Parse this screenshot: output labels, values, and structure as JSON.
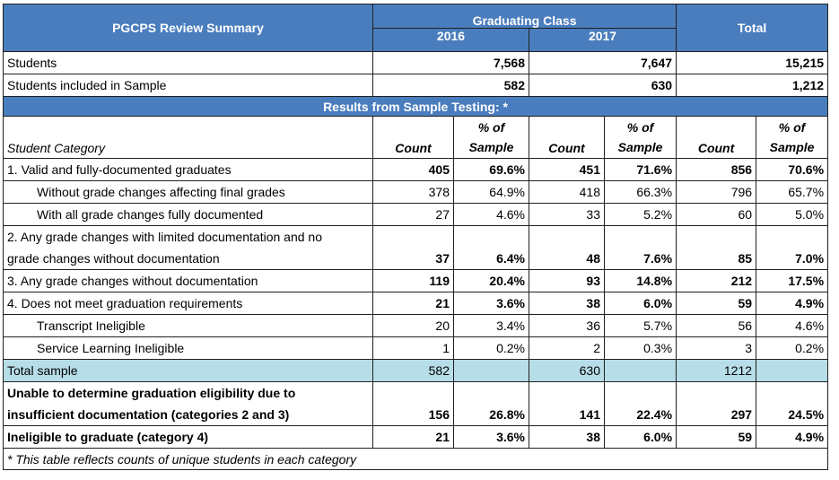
{
  "header": {
    "title": "PGCPS Review Summary",
    "graduating_class": "Graduating Class",
    "year_2016": "2016",
    "year_2017": "2017",
    "total": "Total"
  },
  "summary_rows": [
    {
      "label": "Students",
      "v2016": "7,568",
      "v2017": "7,647",
      "total": "15,215"
    },
    {
      "label": "Students included in Sample",
      "v2016": "582",
      "v2017": "630",
      "total": "1,212"
    }
  ],
  "results_banner": "Results from Sample Testing: *",
  "subheader": {
    "category": "Student Category",
    "count": "Count",
    "pct_line1": "% of",
    "pct_line2": "Sample"
  },
  "rows": [
    {
      "label": "1.  Valid and fully-documented graduates",
      "c16": "405",
      "p16": "69.6%",
      "c17": "451",
      "p17": "71.6%",
      "ct": "856",
      "pt": "70.6%"
    },
    {
      "label": "Without grade changes affecting final grades",
      "c16": "378",
      "p16": "64.9%",
      "c17": "418",
      "p17": "66.3%",
      "ct": "796",
      "pt": "65.7%"
    },
    {
      "label": "With all grade changes fully documented",
      "c16": "27",
      "p16": "4.6%",
      "c17": "33",
      "p17": "5.2%",
      "ct": "60",
      "pt": "5.0%"
    },
    {
      "label_line1": "2.  Any grade changes with limited documentation and no",
      "label_line2": "grade changes without documentation",
      "c16": "37",
      "p16": "6.4%",
      "c17": "48",
      "p17": "7.6%",
      "ct": "85",
      "pt": "7.0%"
    },
    {
      "label": "3.  Any grade changes without documentation",
      "c16": "119",
      "p16": "20.4%",
      "c17": "93",
      "p17": "14.8%",
      "ct": "212",
      "pt": "17.5%"
    },
    {
      "label": "4.  Does not meet graduation requirements",
      "c16": "21",
      "p16": "3.6%",
      "c17": "38",
      "p17": "6.0%",
      "ct": "59",
      "pt": "4.9%"
    },
    {
      "label": "Transcript Ineligible",
      "c16": "20",
      "p16": "3.4%",
      "c17": "36",
      "p17": "5.7%",
      "ct": "56",
      "pt": "4.6%"
    },
    {
      "label": "Service Learning Ineligible",
      "c16": "1",
      "p16": "0.2%",
      "c17": "2",
      "p17": "0.3%",
      "ct": "3",
      "pt": "0.2%"
    }
  ],
  "total_sample": {
    "label": "Total sample",
    "c16": "582",
    "c17": "630",
    "ct": "1212"
  },
  "unable": {
    "label_line1": "Unable to determine graduation eligibility due to",
    "label_line2": "insufficient documentation (categories 2 and 3)",
    "c16": "156",
    "p16": "26.8%",
    "c17": "141",
    "p17": "22.4%",
    "ct": "297",
    "pt": "24.5%"
  },
  "ineligible": {
    "label": "Ineligible to graduate (category 4)",
    "c16": "21",
    "p16": "3.6%",
    "c17": "38",
    "p17": "6.0%",
    "ct": "59",
    "pt": "4.9%"
  },
  "footnote": "* This table reflects counts of unique students in each category",
  "colors": {
    "header_blue": "#4a7dbd",
    "total_row": "#b7dde8"
  }
}
